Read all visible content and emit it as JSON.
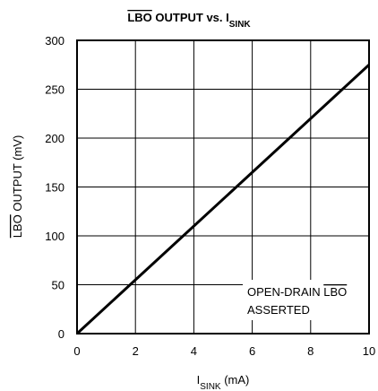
{
  "chart_data": {
    "type": "line",
    "title_parts": [
      "LBO",
      " OUTPUT vs. I",
      "SINK"
    ],
    "ylabel_parts": [
      "LBO",
      " OUTPUT (mV)"
    ],
    "xlabel_parts": [
      "I",
      "SINK",
      " (mA)"
    ],
    "annotation_parts": [
      "OPEN-DRAIN ",
      "LBO",
      "ASSERTED"
    ],
    "x": [
      0,
      10
    ],
    "series": [
      {
        "color": "#000000",
        "values": [
          0,
          275
        ]
      }
    ],
    "xlim": [
      0,
      10
    ],
    "xticks": [
      0,
      2,
      4,
      6,
      8,
      10
    ],
    "ylim": [
      0,
      300
    ],
    "yticks": [
      0,
      50,
      100,
      150,
      200,
      250,
      300
    ],
    "grid": true
  }
}
